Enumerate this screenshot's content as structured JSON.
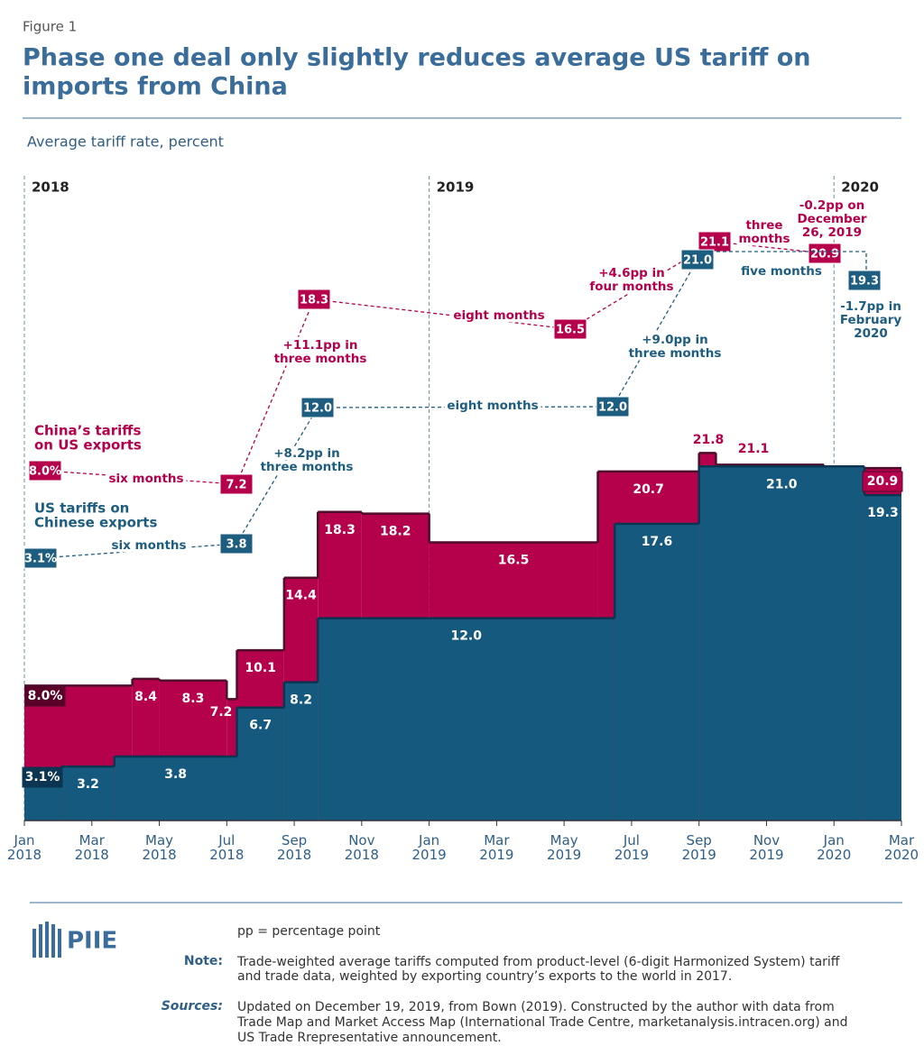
{
  "figure_label": "Figure 1",
  "chart_data": {
    "type": "step-area",
    "title": [
      "Phase one deal only slightly reduces average US tariff on",
      "imports from China"
    ],
    "subtitle": "Average tariff rate, percent",
    "xlim": [
      0,
      26
    ],
    "xticks": [
      {
        "value": 0,
        "label": "Jan 2018"
      },
      {
        "value": 2,
        "label": "Mar 2018"
      },
      {
        "value": 4,
        "label": "May 2018"
      },
      {
        "value": 6,
        "label": "Jul 2018"
      },
      {
        "value": 8,
        "label": "Sep 2018"
      },
      {
        "value": 10,
        "label": "Nov 2018"
      },
      {
        "value": 12,
        "label": "Jan 2019"
      },
      {
        "value": 14,
        "label": "Mar 2019"
      },
      {
        "value": 16,
        "label": "May 2019"
      },
      {
        "value": 18,
        "label": "Jul 2019"
      },
      {
        "value": 20,
        "label": "Sep 2019"
      },
      {
        "value": 22,
        "label": "Nov 2019"
      },
      {
        "value": 24,
        "label": "Jan 2020"
      },
      {
        "value": 26,
        "label": "Mar 2020"
      }
    ],
    "year_markers": [
      {
        "value": 0,
        "label": "2018"
      },
      {
        "value": 12,
        "label": "2019"
      },
      {
        "value": 24,
        "label": "2020"
      }
    ],
    "ylim": [
      0,
      40
    ],
    "series": [
      {
        "name": "China’s tariffs on US exports",
        "color": "#b5004b",
        "outline": "#4d0d2b",
        "x": [
          0,
          3.2,
          4.0,
          6.0,
          6.3,
          7.7,
          8.7,
          10.0,
          12.0,
          17.0,
          20.0,
          20.5,
          23.7
        ],
        "values": [
          8.0,
          8.4,
          8.3,
          7.2,
          10.1,
          14.4,
          18.3,
          18.2,
          16.5,
          20.7,
          21.8,
          21.1,
          20.9
        ],
        "value_labels": [
          "8.0%",
          "8.4",
          "8.3",
          "7.2",
          "10.1",
          "14.4",
          "18.3",
          "18.2",
          "16.5",
          "20.7",
          "21.8",
          "21.1",
          "20.9"
        ]
      },
      {
        "name": "US tariffs on Chinese exports",
        "color": "#155a7e",
        "outline": "#0b3550",
        "x": [
          0,
          1.1,
          2.67,
          6.3,
          7.7,
          8.7,
          17.5,
          20.0,
          24.9
        ],
        "values": [
          3.1,
          3.2,
          3.8,
          6.7,
          8.2,
          12.0,
          17.6,
          21.0,
          19.3
        ],
        "value_labels": [
          "3.1%",
          "3.2",
          "3.8",
          "6.7",
          "8.2",
          "12.0",
          "17.6",
          "21.0",
          "19.3"
        ]
      }
    ],
    "timeline": {
      "china": {
        "label": [
          "China’s tariffs",
          "on US exports"
        ],
        "boxes": [
          "8.0%",
          "7.2",
          "18.3",
          "16.5",
          "21.1",
          "20.9"
        ],
        "notes": [
          [
            "six months"
          ],
          [
            "+11.1pp in",
            "three months"
          ],
          [
            "eight months"
          ],
          [
            "+4.6pp in",
            "four months"
          ],
          [
            "three",
            "months"
          ],
          [
            "-0.2pp on",
            "December",
            "26, 2019"
          ]
        ]
      },
      "us": {
        "label": [
          "US tariffs on",
          "Chinese exports"
        ],
        "boxes": [
          "3.1%",
          "3.8",
          "12.0",
          "12.0",
          "21.0",
          "19.3"
        ],
        "notes": [
          [
            "six months"
          ],
          [
            "+8.2pp in",
            "three months"
          ],
          [
            "eight months"
          ],
          [
            "+9.0pp in",
            "three months"
          ],
          [
            "five months"
          ],
          [
            "-1.7pp in",
            "February",
            "2020"
          ]
        ]
      }
    }
  },
  "footer": {
    "logo": "PIIE",
    "pp": "pp = percentage point",
    "note_label": "Note:",
    "note": [
      "Trade-weighted average tariffs computed from product-level (6-digit Harmonized System) tariff",
      "and trade data, weighted by exporting country’s exports to the world in 2017."
    ],
    "sources_label": "Sources:",
    "sources": [
      "Updated on December 19, 2019, from Bown (2019). Constructed by the author with data from",
      "Trade Map and Market Access Map (International Trade Centre, marketanalysis.intracen.org) and",
      "US Trade Rrepresentative announcement."
    ]
  }
}
